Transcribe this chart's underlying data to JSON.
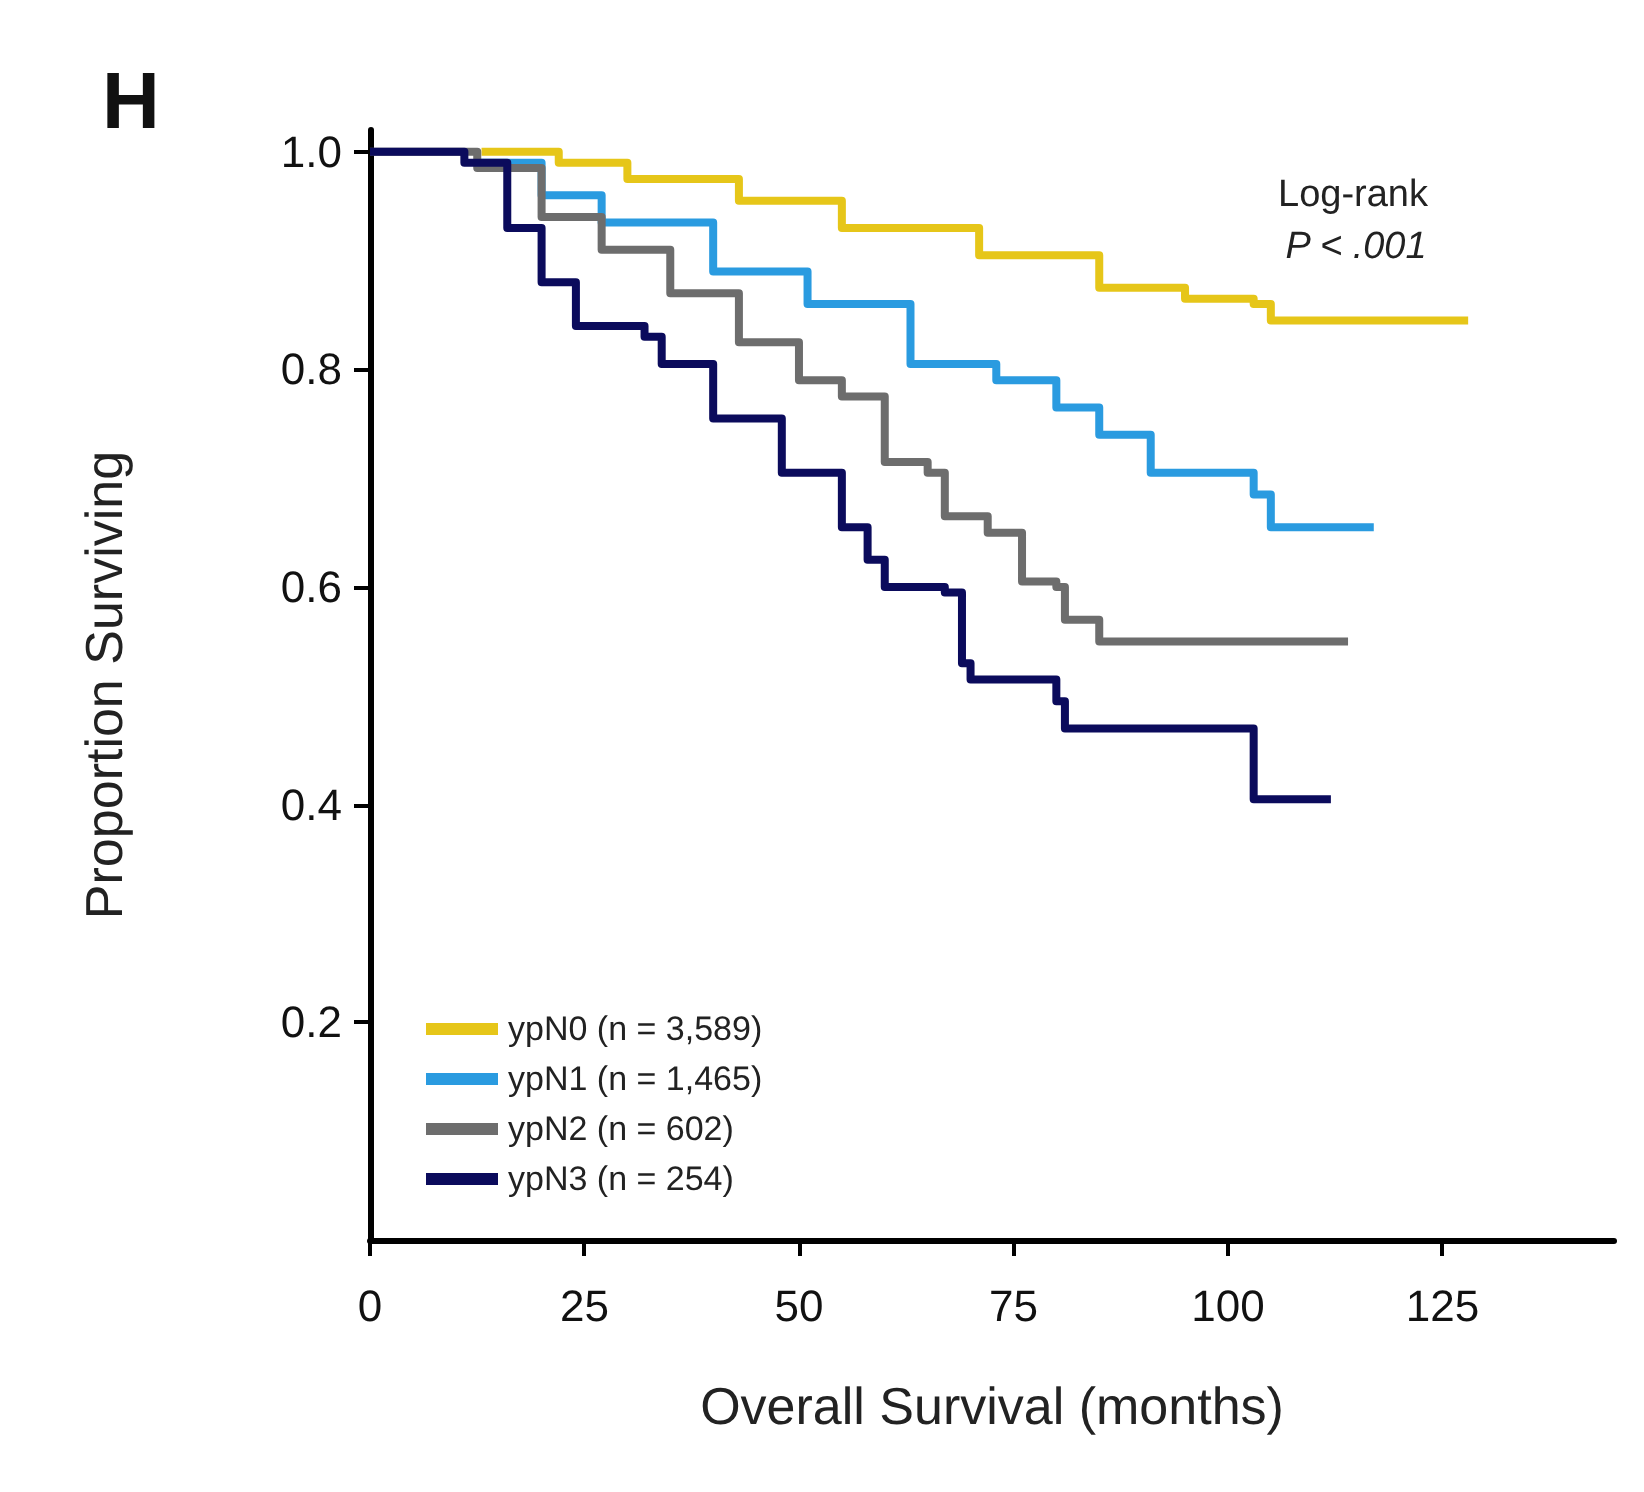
{
  "chart_data": {
    "type": "step",
    "title": "H",
    "xlabel": "Overall Survival (months)",
    "ylabel": "Proportion Surviving",
    "annotations": [
      "Log-rank",
      "P < .001"
    ],
    "xlim": [
      0,
      145
    ],
    "xticks": [
      0,
      25,
      50,
      75,
      100,
      125
    ],
    "ylim": [
      0,
      1.02
    ],
    "yticks": [
      0.2,
      0.4,
      0.6,
      0.8,
      {
        "value": 1,
        "label": "1.0"
      }
    ],
    "grid": false,
    "legend": "bottom left",
    "marker": "none",
    "series": [
      {
        "name": "ypN0 (n = 3,589)",
        "color": "#e6c619",
        "x": [
          13,
          22,
          30,
          43,
          55,
          71,
          85,
          95,
          103,
          105,
          128
        ],
        "values": [
          1.0,
          0.99,
          0.975,
          0.955,
          0.93,
          0.905,
          0.875,
          0.865,
          0.86,
          0.845,
          0.845
        ]
      },
      {
        "name": "ypN1 (n = 1,465)",
        "color": "#2a9be0",
        "x": [
          12.5,
          20,
          27,
          40,
          51,
          63,
          73,
          80,
          85,
          91,
          103,
          105,
          117
        ],
        "values": [
          0.99,
          0.96,
          0.935,
          0.89,
          0.86,
          0.805,
          0.79,
          0.765,
          0.74,
          0.705,
          0.685,
          0.655,
          0.655
        ]
      },
      {
        "name": "ypN2 (n = 602)",
        "color": "#6d6d6d",
        "x": [
          0,
          8,
          12.5,
          20,
          27,
          35,
          43,
          50,
          55,
          60,
          65,
          67,
          72,
          76,
          80,
          81,
          85,
          114
        ],
        "values": [
          1.0,
          1.0,
          0.985,
          0.94,
          0.91,
          0.87,
          0.825,
          0.79,
          0.775,
          0.715,
          0.705,
          0.665,
          0.65,
          0.605,
          0.6,
          0.57,
          0.55,
          0.55
        ]
      },
      {
        "name": "ypN3 (n = 254)",
        "color": "#0b0b5c",
        "x": [
          0,
          5,
          11,
          16,
          20,
          24,
          32,
          34,
          40,
          48,
          55,
          58,
          60,
          67,
          69,
          70,
          79,
          80,
          81,
          103,
          112
        ],
        "values": [
          1.0,
          1.0,
          0.99,
          0.93,
          0.88,
          0.84,
          0.83,
          0.805,
          0.755,
          0.705,
          0.655,
          0.625,
          0.6,
          0.595,
          0.53,
          0.515,
          0.515,
          0.495,
          0.47,
          0.405,
          0.405
        ]
      }
    ]
  }
}
